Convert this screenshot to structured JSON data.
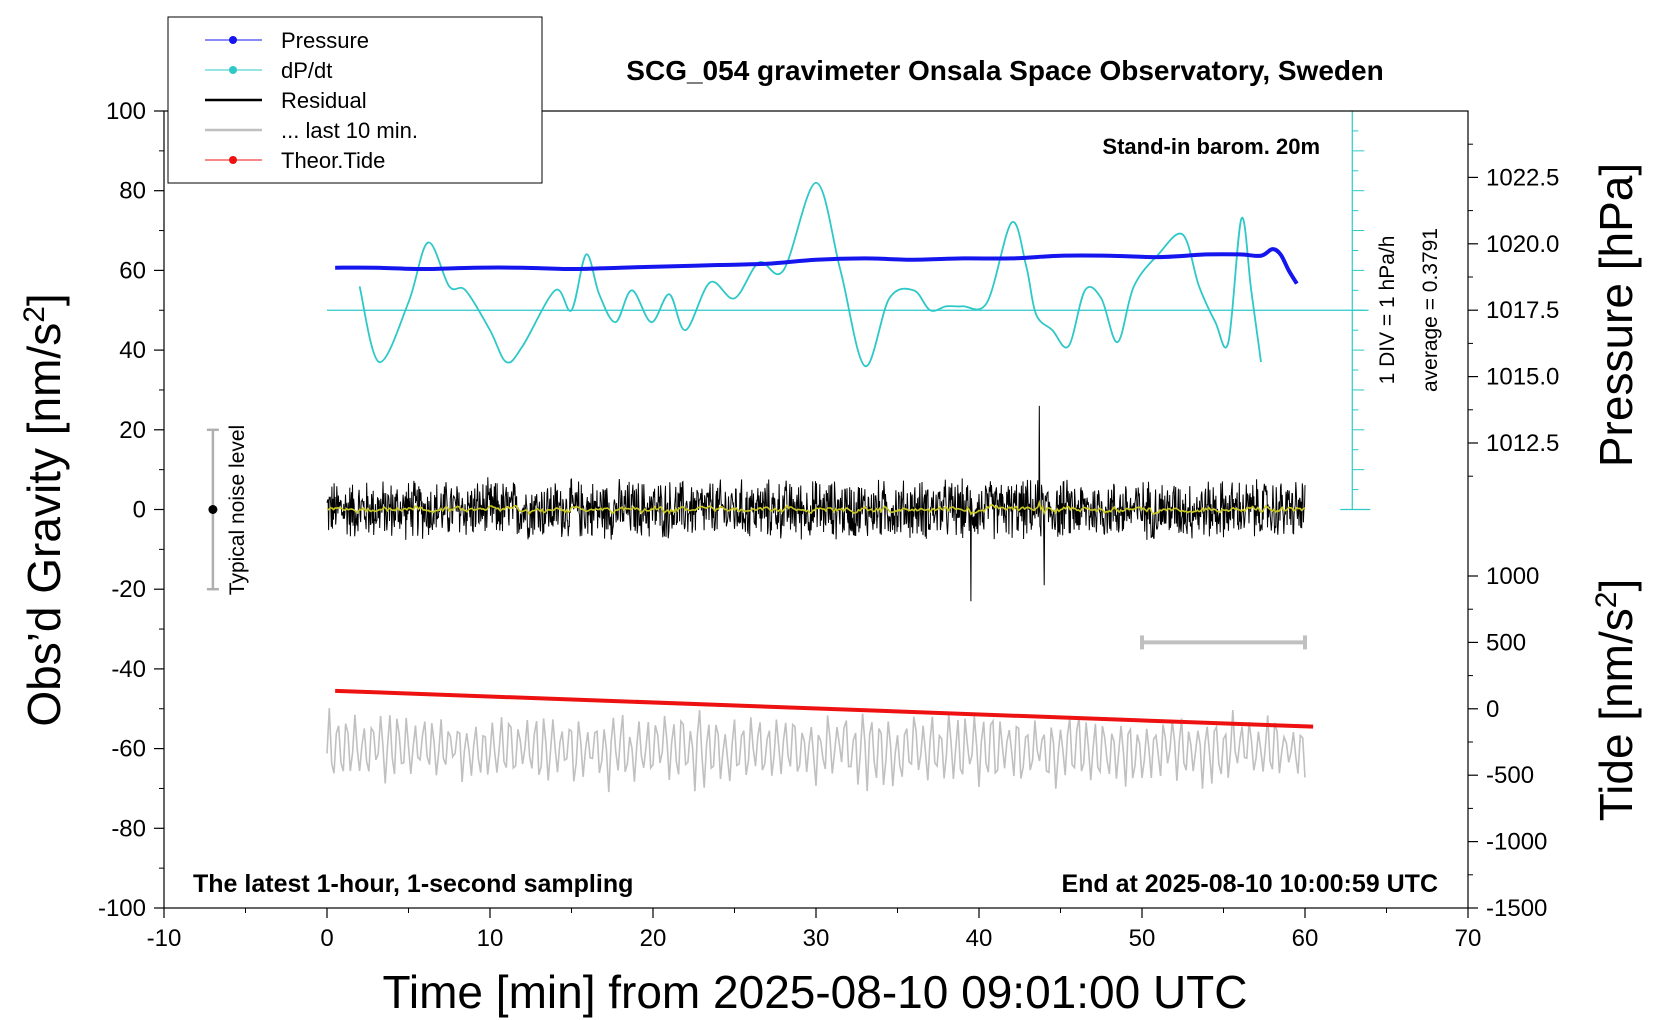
{
  "chart_data": {
    "type": "line",
    "title": "SCG_054 gravimeter Onsala Space Observatory, Sweden",
    "xlabel": "Time [min] from 2025-08-10 09:01:00 UTC",
    "ylabel_left_main": "Obs’d Gravity [nm/s",
    "ylabel_left_sup": "2",
    "ylabel_left_end": "]",
    "ylabel_right_pressure": "Pressure [hPa]",
    "ylabel_right_tide_main": "Tide [nm/s",
    "ylabel_right_tide_sup": "2",
    "ylabel_right_tide_end": "]",
    "xlim": [
      -10,
      70
    ],
    "ylim": [
      -100,
      100
    ],
    "pressure_lim": [
      1010.0,
      1025.0
    ],
    "tide_lim": [
      -1500,
      1500
    ],
    "x_ticks": [
      "-10",
      "0",
      "10",
      "20",
      "30",
      "40",
      "50",
      "60",
      "70"
    ],
    "y_ticks": [
      "100",
      "80",
      "60",
      "40",
      "20",
      "0",
      "-20",
      "-40",
      "-60",
      "-80",
      "-100"
    ],
    "pressure_ticks": [
      "1022.5",
      "1020.0",
      "1017.5",
      "1015.0",
      "1012.5"
    ],
    "tide_ticks": [
      "1000",
      "500",
      "0",
      "-500",
      "-1000",
      "-1500"
    ],
    "legend": [
      {
        "label": "Pressure",
        "color": "#1515ee",
        "marker": true
      },
      {
        "label": "dP/dt",
        "color": "#2ec8c8",
        "marker": true
      },
      {
        "label": "Residual",
        "color": "#000000",
        "marker": false
      },
      {
        "label": "... last 10 min.",
        "color": "#c0c0c0",
        "marker": false
      },
      {
        "label": "Theor.Tide",
        "color": "#ee1111",
        "marker": true
      }
    ],
    "annotations": {
      "barometer": "Stand-in barom. 20m",
      "div_note": "1 DIV = 1 hPa/h",
      "average_note": "average = 0.3791",
      "noise_label": "Typical noise level",
      "bottom_left": "The latest 1-hour, 1-second sampling",
      "bottom_right": "End at 2025-08-10 10:00:59 UTC"
    },
    "noise_bar": {
      "x": -7,
      "y_center": 0,
      "y_min": -20,
      "y_max": 20
    },
    "last10_marker": {
      "x_start": 50,
      "x_end": 60,
      "tide_value": 500
    },
    "series": [
      {
        "name": "Pressure",
        "color": "#1515ee",
        "axis": "pressure",
        "x": [
          0.5,
          3,
          6,
          9,
          12,
          15,
          18,
          21,
          24,
          27,
          30,
          33,
          36,
          39,
          42,
          45,
          48,
          51,
          54,
          56,
          57.3,
          58,
          58.5,
          59,
          59.5
        ],
        "y": [
          1019.1,
          1019.1,
          1019.05,
          1019.1,
          1019.1,
          1019.05,
          1019.1,
          1019.15,
          1019.2,
          1019.25,
          1019.4,
          1019.45,
          1019.4,
          1019.45,
          1019.45,
          1019.55,
          1019.55,
          1019.5,
          1019.6,
          1019.6,
          1019.55,
          1019.8,
          1019.6,
          1019.0,
          1018.5
        ]
      },
      {
        "name": "dP/dt",
        "color": "#2ec8c8",
        "axis": "gravity",
        "baseline": 50,
        "x": [
          2,
          3.2,
          5,
          6.2,
          7.5,
          8.5,
          10,
          11,
          12,
          14,
          15,
          15.9,
          16.7,
          17.7,
          18.7,
          19.9,
          21,
          22,
          23.5,
          25,
          26.5,
          28,
          30,
          31.5,
          33,
          34.5,
          36,
          37,
          38,
          39,
          40.5,
          42,
          42.9,
          43.5,
          44.5,
          45.5,
          46.5,
          47.5,
          48.5,
          49.5,
          51,
          52.5,
          53.5,
          54.5,
          55.3,
          56.1,
          56.7,
          57.3
        ],
        "y": [
          56,
          37,
          52,
          67,
          56,
          55,
          45,
          37,
          41,
          55,
          50,
          64,
          54,
          47,
          55,
          47,
          54,
          45,
          57,
          53,
          62,
          60,
          82,
          60,
          36,
          53,
          55,
          50,
          51,
          51,
          52,
          72,
          61,
          49,
          45,
          41,
          55,
          53,
          42,
          56,
          64,
          69,
          56,
          47,
          42,
          73,
          55,
          37
        ]
      },
      {
        "name": "Residual",
        "color": "#000000",
        "axis": "gravity",
        "x_start": 0,
        "x_end": 60,
        "amplitude": 7,
        "spikes": [
          {
            "x": 43.7,
            "y": 26
          },
          {
            "x": 39.5,
            "y": -23
          },
          {
            "x": 44,
            "y": -19
          }
        ]
      },
      {
        "name": "... last 10 min.",
        "color": "#c0c0c0",
        "axis": "gravity",
        "x_start": 0,
        "x_end": 60,
        "center": -60,
        "amplitude": 8
      },
      {
        "name": "Theor.Tide",
        "color": "#ee1111",
        "axis": "gravity",
        "x": [
          0.5,
          60.5
        ],
        "y": [
          -45.5,
          -54.5
        ]
      }
    ],
    "grid": false,
    "legend_position": "top-left"
  }
}
